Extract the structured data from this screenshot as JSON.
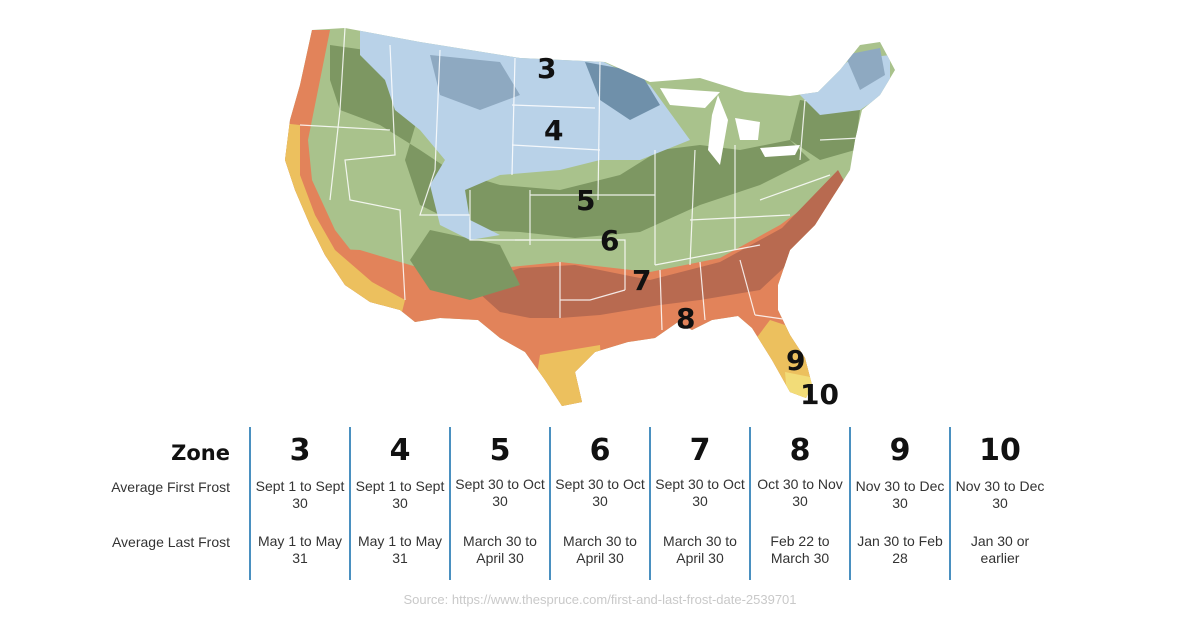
{
  "map": {
    "zone_labels": [
      "3",
      "4",
      "5",
      "6",
      "7",
      "8",
      "9",
      "10"
    ],
    "colors": {
      "zone3": "#6f90aa",
      "zone4": "#b9d2e8",
      "zone5": "#7d9762",
      "zone6": "#a9c28c",
      "zone7": "#b86a50",
      "zone8": "#e2835a",
      "zone9": "#ecc05e",
      "zone10": "#f2dc78",
      "state_lines": "#ffffff"
    }
  },
  "table": {
    "zone_heading": "Zone",
    "first_frost_label": "Average First Frost",
    "last_frost_label": "Average Last Frost",
    "divider_color": "#4a90c0",
    "columns": [
      {
        "zone": "3",
        "first": "Sept 1 to Sept 30",
        "last": "May 1 to May 31"
      },
      {
        "zone": "4",
        "first": "Sept 1 to Sept 30",
        "last": "May 1 to May 31"
      },
      {
        "zone": "5",
        "first": "Sept 30 to Oct 30",
        "last": "March 30 to April 30"
      },
      {
        "zone": "6",
        "first": "Sept 30 to Oct 30",
        "last": "March 30 to April 30"
      },
      {
        "zone": "7",
        "first": "Sept 30 to Oct 30",
        "last": "March 30 to April 30"
      },
      {
        "zone": "8",
        "first": "Oct 30 to Nov 30",
        "last": "Feb 22 to March 30"
      },
      {
        "zone": "9",
        "first": "Nov 30 to Dec 30",
        "last": "Jan 30 to Feb 28"
      },
      {
        "zone": "10",
        "first": "Nov 30 to Dec 30",
        "last": "Jan 30 or earlier"
      }
    ]
  },
  "source": "Source: https://www.thespruce.com/first-and-last-frost-date-2539701"
}
